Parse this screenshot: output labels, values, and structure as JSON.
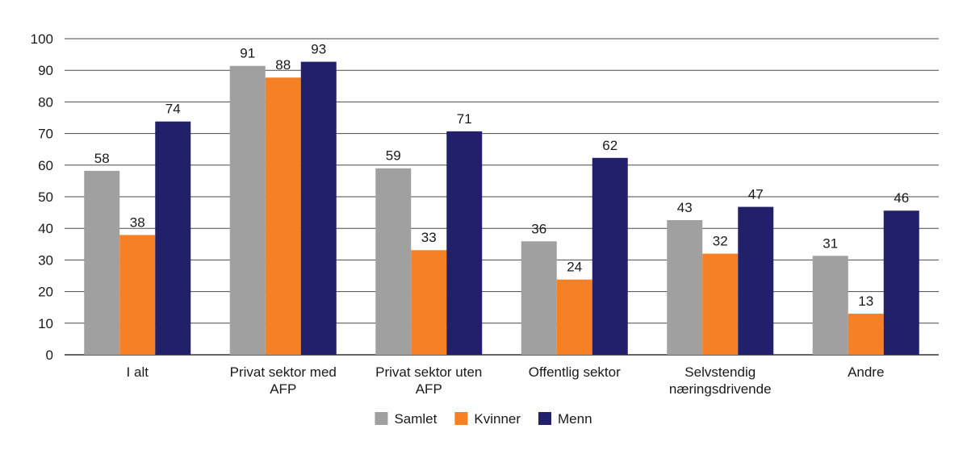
{
  "chart_data": {
    "type": "bar",
    "categories": [
      [
        "I alt"
      ],
      [
        "Privat sektor med",
        "AFP"
      ],
      [
        "Privat sektor uten",
        "AFP"
      ],
      [
        "Offentlig sektor"
      ],
      [
        "Selvstendig",
        "næringsdrivende"
      ],
      [
        "Andre"
      ]
    ],
    "series": [
      {
        "name": "Samlet",
        "color": "#a0a0a0",
        "values": [
          58,
          91,
          59,
          36,
          43,
          31
        ]
      },
      {
        "name": "Kvinner",
        "color": "#f58025",
        "values": [
          38,
          88,
          33,
          24,
          32,
          13
        ]
      },
      {
        "name": "Menn",
        "color": "#23206b",
        "values": [
          74,
          93,
          71,
          62,
          47,
          46
        ]
      }
    ],
    "bar_heights": [
      [
        58.2,
        91.4,
        59.0,
        35.9,
        42.6,
        31.3
      ],
      [
        37.9,
        87.7,
        33.1,
        23.8,
        32.0,
        13.0
      ],
      [
        73.8,
        92.7,
        70.7,
        62.3,
        46.8,
        45.6
      ]
    ],
    "yticks": [
      0,
      10,
      20,
      30,
      40,
      50,
      60,
      70,
      80,
      90,
      100
    ],
    "ylim": [
      0,
      100
    ],
    "grid": true,
    "legend_position": "bottom-center",
    "title": "",
    "xlabel": "",
    "ylabel": ""
  }
}
